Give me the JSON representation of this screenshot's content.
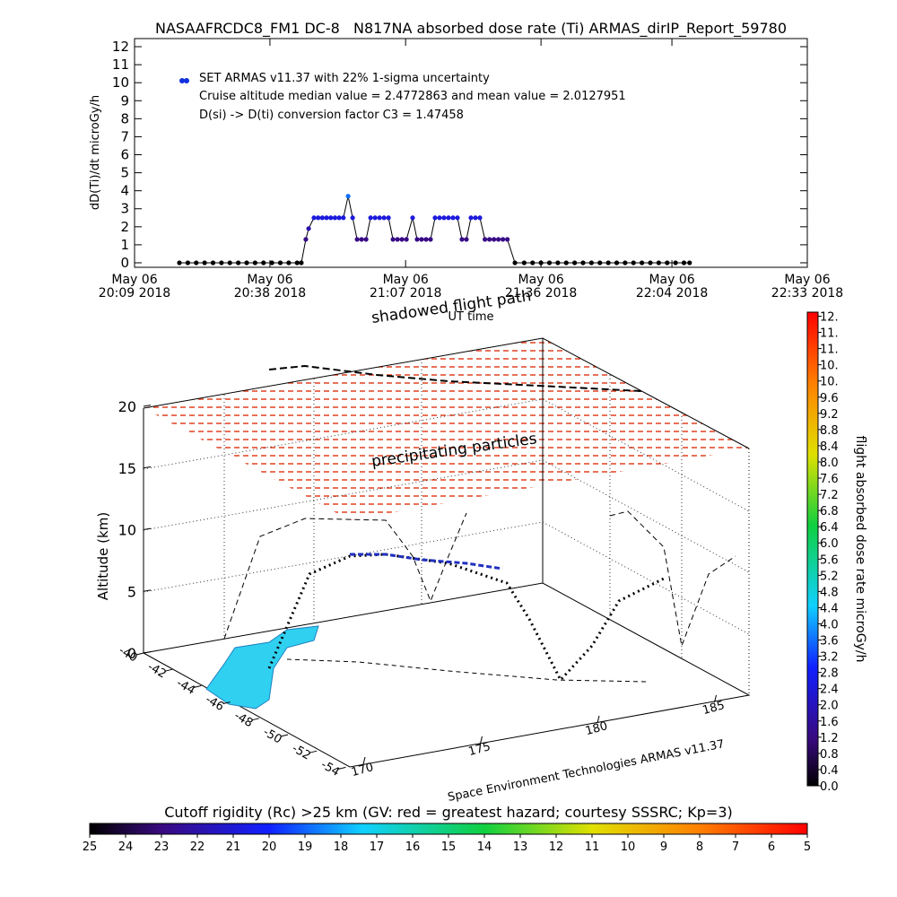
{
  "chart_data": [
    {
      "type": "line",
      "title": "NASAAFRCDC8_FM1 DC-8   N817NA absorbed dose rate (Ti) ARMAS_dirIP_Report_59780",
      "ylabel": "dD(Ti)/dt microGy/h",
      "xlabel": "UT time",
      "annotations": [
        "Cruise altitude median value = 2.4772863 and mean value = 2.0127951",
        "D(si) -> D(ti) conversion factor C3 = 1.47458"
      ],
      "xlim": [
        20.15,
        22.55
      ],
      "xticks": [
        {
          "value": 20.15,
          "label": "May 06\n20:09 2018"
        },
        {
          "value": 20.633,
          "label": "May 06\n20:38 2018"
        },
        {
          "value": 21.117,
          "label": "May 06\n21:07 2018"
        },
        {
          "value": 21.6,
          "label": "May 06\n21:36 2018"
        },
        {
          "value": 22.067,
          "label": "May 06\n22:04 2018"
        },
        {
          "value": 22.55,
          "label": "May 06\n22:33 2018"
        }
      ],
      "ylim": [
        -0.25,
        12.45
      ],
      "yticks": [
        0,
        1,
        2,
        3,
        4,
        5,
        6,
        7,
        8,
        9,
        10,
        11,
        12
      ],
      "series": [
        {
          "name": "SET ARMAS v11.37 with 22% 1-sigma uncertainty",
          "color": "#1030e0",
          "x": [
            20.31,
            20.34,
            20.37,
            20.4,
            20.43,
            20.46,
            20.49,
            20.52,
            20.55,
            20.58,
            20.61,
            20.64,
            20.67,
            20.7,
            20.73,
            20.745,
            20.761,
            20.771,
            20.79,
            20.805,
            20.82,
            20.835,
            20.85,
            20.865,
            20.88,
            20.895,
            20.912,
            20.928,
            20.944,
            20.96,
            20.976,
            20.992,
            21.008,
            21.024,
            21.04,
            21.056,
            21.072,
            21.088,
            21.104,
            21.12,
            21.142,
            21.158,
            21.174,
            21.19,
            21.206,
            21.222,
            21.238,
            21.254,
            21.27,
            21.286,
            21.302,
            21.318,
            21.334,
            21.35,
            21.366,
            21.382,
            21.4,
            21.416,
            21.432,
            21.448,
            21.464,
            21.48,
            21.507,
            21.54,
            21.57,
            21.6,
            21.63,
            21.66,
            21.69,
            21.72,
            21.75,
            21.78,
            21.81,
            21.84,
            21.87,
            21.9,
            21.93,
            21.96,
            21.99,
            22.02,
            22.05,
            22.08,
            22.11,
            22.13
          ],
          "values": [
            0,
            0,
            0,
            0,
            0,
            0,
            0,
            0,
            0,
            0,
            0,
            0,
            0,
            0,
            0,
            0,
            1.3,
            1.9,
            2.5,
            2.5,
            2.5,
            2.5,
            2.5,
            2.5,
            2.5,
            2.5,
            3.7,
            2.5,
            1.3,
            1.3,
            1.3,
            2.5,
            2.5,
            2.5,
            2.5,
            2.5,
            1.3,
            1.3,
            1.3,
            1.3,
            2.5,
            1.3,
            1.3,
            1.3,
            1.3,
            2.5,
            2.5,
            2.5,
            2.5,
            2.5,
            2.5,
            1.3,
            1.3,
            2.5,
            2.5,
            2.5,
            1.3,
            1.3,
            1.3,
            1.3,
            1.3,
            1.3,
            0,
            0,
            0,
            0,
            0,
            0,
            0,
            0,
            0,
            0,
            0,
            0,
            0,
            0,
            0,
            0,
            0,
            0,
            0,
            0,
            0,
            0
          ]
        }
      ]
    },
    {
      "type": "scatter3d",
      "labels": [
        "shadowed flight path",
        "precipitating particles"
      ],
      "zlabel": "Altitude (km)",
      "credit": "Space Environment Technologies ARMAS v11.37",
      "xticks": [
        -40,
        -42,
        -44,
        -46,
        -48,
        -50,
        -52,
        -54
      ],
      "yticks": [
        170,
        175,
        180,
        185
      ],
      "zticks": [
        0,
        5,
        10,
        15,
        20
      ]
    },
    {
      "type": "colorbar",
      "label": "flight absorbed dose rate microGy/h",
      "lim": [
        0,
        11.7
      ],
      "ticks": [
        {
          "value": 0,
          "label": "0.0"
        },
        0.4,
        0.8,
        1.2,
        1.6,
        {
          "value": 2,
          "label": "2.0"
        },
        2.4,
        2.8,
        3.2,
        3.6,
        {
          "value": 4,
          "label": "4.0"
        },
        4.4,
        4.8,
        5.2,
        5.6,
        {
          "value": 6,
          "label": "6.0"
        },
        6.4,
        6.8,
        7.2,
        7.6,
        {
          "value": 8,
          "label": "8.0"
        },
        8.4,
        8.8,
        9.2,
        9.6,
        {
          "value": 10,
          "label": "10."
        },
        {
          "value": 10.4,
          "label": "10."
        },
        {
          "value": 10.8,
          "label": "11."
        },
        {
          "value": 11.2,
          "label": "11."
        },
        {
          "value": 11.6,
          "label": "12."
        }
      ]
    },
    {
      "type": "colorbar",
      "label": "Cutoff rigidity (Rc) >25 km (GV: red = greatest hazard; courtesy SSSRC; Kp=3)",
      "lim": [
        25,
        5
      ],
      "ticks": [
        25,
        24,
        23,
        22,
        21,
        20,
        19,
        18,
        17,
        16,
        15,
        14,
        13,
        12,
        11,
        10,
        9,
        8,
        7,
        6,
        5
      ]
    }
  ]
}
